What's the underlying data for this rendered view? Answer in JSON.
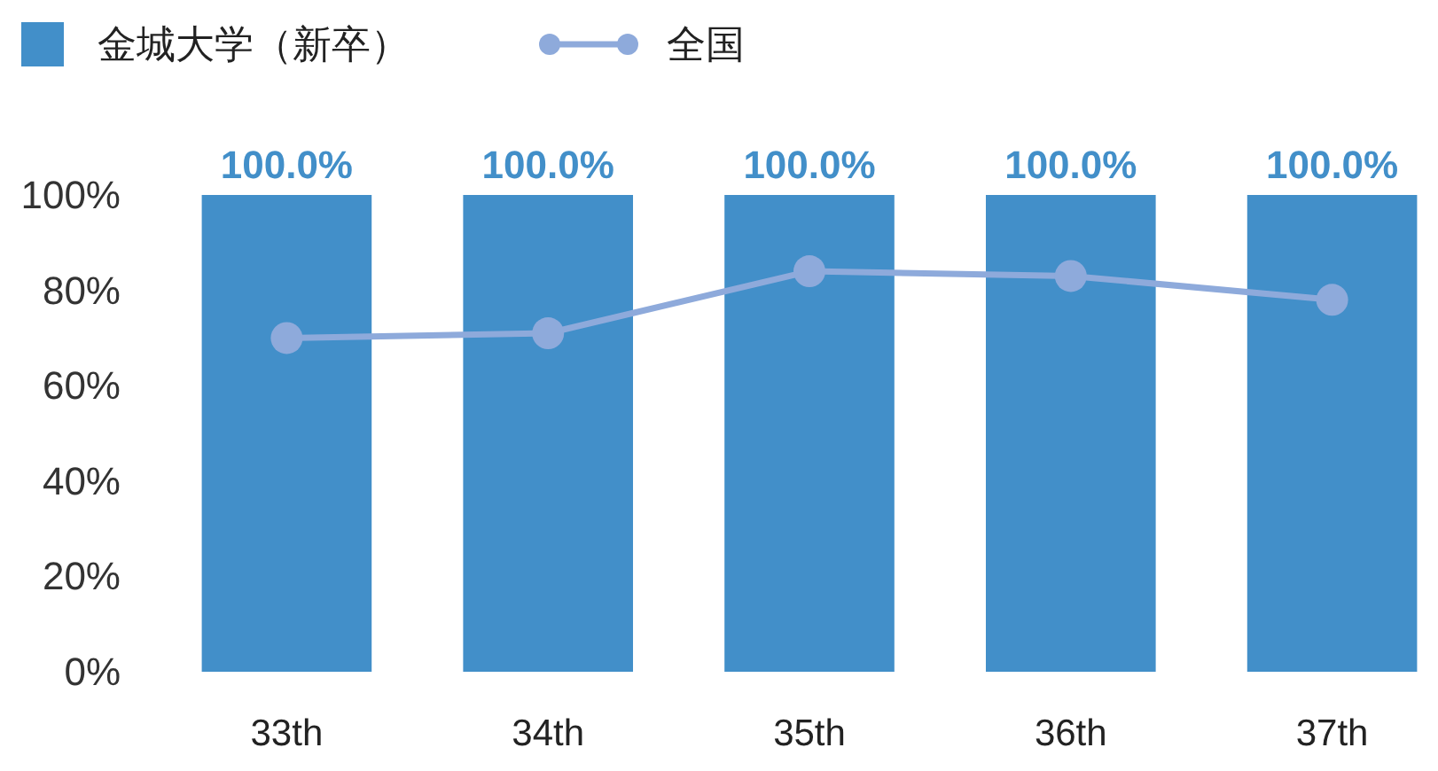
{
  "chart_data": {
    "type": "bar",
    "categories": [
      "33th",
      "34th",
      "35th",
      "36th",
      "37th"
    ],
    "series": [
      {
        "name": "金城大学（新卒）",
        "color": "#428fc9",
        "values": [
          100,
          100,
          100,
          100,
          100
        ],
        "value_labels": [
          "100.0%",
          "100.0%",
          "100.0%",
          "100.0%",
          "100.0%"
        ]
      },
      {
        "name": "全国",
        "type": "line",
        "color": "#8eaadb",
        "values": [
          70,
          71,
          84,
          83,
          78
        ]
      }
    ],
    "ylim": [
      0,
      100
    ],
    "yticks": [
      {
        "value": 0,
        "label": "0%"
      },
      {
        "value": 20,
        "label": "20%"
      },
      {
        "value": 40,
        "label": "40%"
      },
      {
        "value": 60,
        "label": "60%"
      },
      {
        "value": 80,
        "label": "80%"
      },
      {
        "value": 100,
        "label": "100%"
      }
    ],
    "marker": "circle",
    "legend": "top left"
  }
}
